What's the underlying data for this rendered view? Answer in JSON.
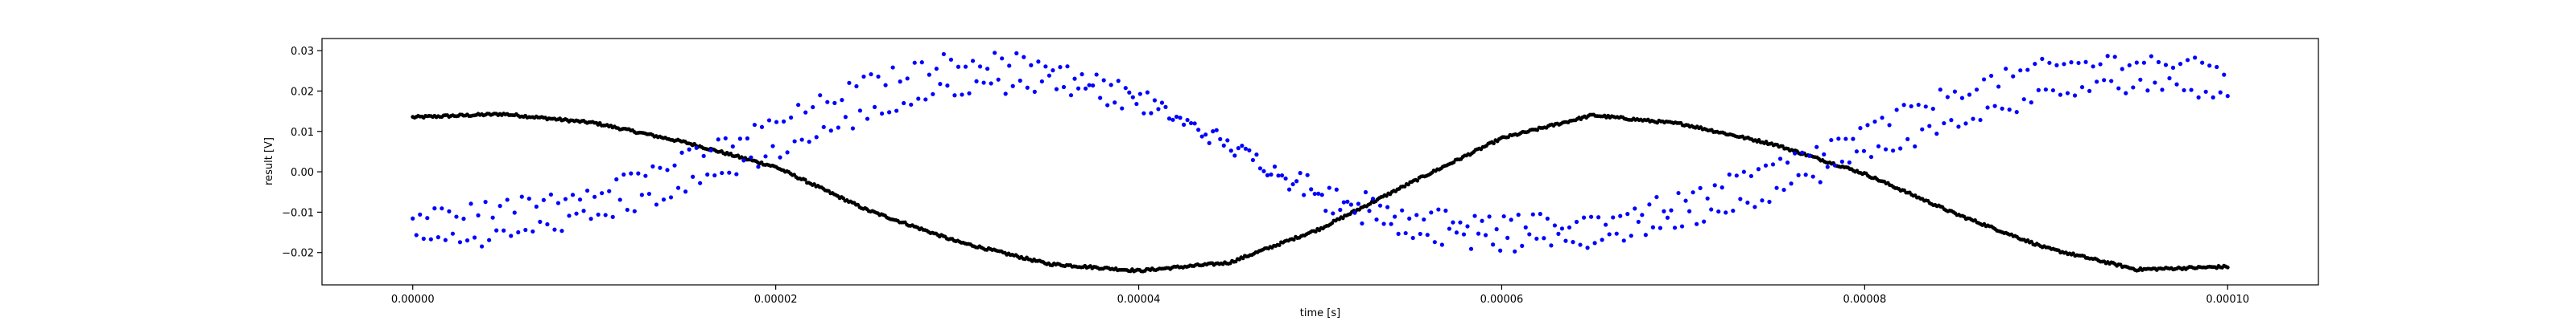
{
  "chart_data": {
    "type": "scatter",
    "title": "",
    "xlabel": "time [s]",
    "ylabel": "result [V]",
    "xlim": [
      -5e-06,
      0.000105
    ],
    "ylim": [
      -0.028,
      0.033
    ],
    "grid": false,
    "x_ticks": [
      0.0,
      2e-05,
      4e-05,
      6e-05,
      8e-05,
      0.0001
    ],
    "x_tick_labels": [
      "0.00000",
      "0.00002",
      "0.00004",
      "0.00006",
      "0.00008",
      "0.00010"
    ],
    "y_ticks": [
      -0.02,
      -0.01,
      0.0,
      0.01,
      0.02,
      0.03
    ],
    "y_tick_labels": [
      "−0.02",
      "−0.01",
      "0.00",
      "0.01",
      "0.02",
      "0.03"
    ],
    "series": [
      {
        "color": "#000000",
        "marker": "point",
        "x_start": 0.0,
        "x_end": 0.0001,
        "point_count": 1000,
        "sampled_x": [
          0.0,
          5e-06,
          1e-05,
          1.5e-05,
          2e-05,
          2.5e-05,
          3e-05,
          3.5e-05,
          4e-05,
          4.5e-05,
          5e-05,
          5.5e-05,
          6e-05,
          6.5e-05,
          7e-05,
          7.5e-05,
          8e-05,
          8.5e-05,
          9e-05,
          9.5e-05,
          0.0001
        ],
        "sampled_y": [
          0.0135,
          0.0143,
          0.0121,
          0.0073,
          0.0012,
          -0.0094,
          -0.0173,
          -0.0228,
          -0.0245,
          -0.0225,
          -0.0141,
          -0.0027,
          0.0083,
          0.014,
          0.0118,
          0.0068,
          -0.0005,
          -0.0104,
          -0.0189,
          -0.0242,
          -0.0235
        ]
      },
      {
        "color": "#0000ff",
        "marker": "point",
        "x_start": 0.0,
        "x_end": 0.0001,
        "point_count": 500,
        "sampled_x": [
          0.0,
          5e-06,
          1e-05,
          1.5e-05,
          2e-05,
          2.5e-05,
          3e-05,
          3.5e-05,
          4e-05,
          4.5e-05,
          5e-05,
          5.5e-05,
          6e-05,
          6.5e-05,
          7e-05,
          7.5e-05,
          8e-05,
          8.5e-05,
          9e-05,
          9.5e-05,
          0.0001
        ],
        "sampled_y_upper": [
          -0.011,
          -0.009,
          -0.004,
          0.003,
          0.012,
          0.022,
          0.028,
          0.027,
          0.019,
          0.006,
          -0.004,
          -0.01,
          -0.013,
          -0.012,
          -0.007,
          0.001,
          0.01,
          0.02,
          0.026,
          0.028,
          0.025
        ],
        "sampled_y_lower": [
          -0.017,
          -0.016,
          -0.011,
          -0.004,
          0.005,
          0.014,
          0.021,
          0.022,
          0.017,
          0.007,
          -0.007,
          -0.015,
          -0.018,
          -0.017,
          -0.012,
          -0.005,
          0.004,
          0.012,
          0.019,
          0.022,
          0.02
        ]
      }
    ]
  }
}
